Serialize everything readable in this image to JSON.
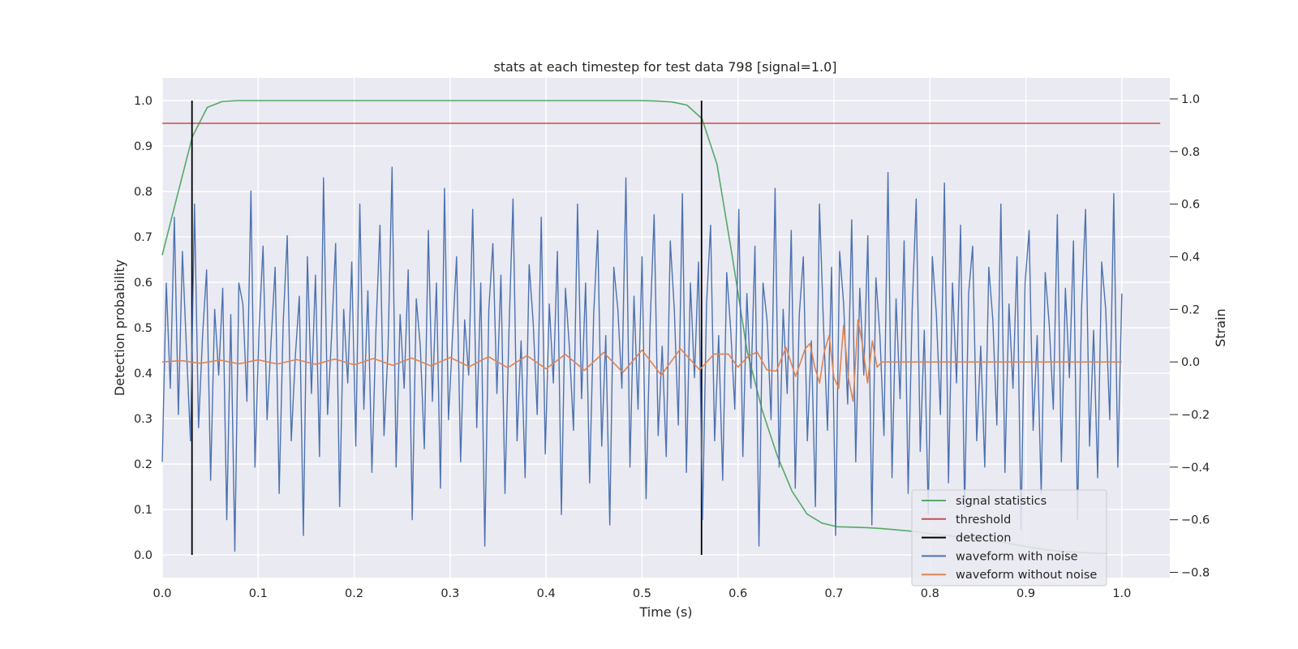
{
  "chart_data": {
    "type": "line",
    "title": "stats at each timestep for test data 798 [signal=1.0]",
    "xlabel": "Time (s)",
    "ylabel": "Detection probability",
    "y2label": "Strain",
    "xlim": [
      0.0,
      1.05
    ],
    "ylim": [
      -0.05,
      1.05
    ],
    "y2lim": [
      -0.82,
      1.08
    ],
    "xticks": [
      "0.0",
      "0.1",
      "0.2",
      "0.3",
      "0.4",
      "0.5",
      "0.6",
      "0.7",
      "0.8",
      "0.9",
      "1.0"
    ],
    "yticks": [
      "0.0",
      "0.1",
      "0.2",
      "0.3",
      "0.4",
      "0.5",
      "0.6",
      "0.7",
      "0.8",
      "0.9",
      "1.0"
    ],
    "y2ticks": [
      "−0.8",
      "−0.6",
      "−0.4",
      "−0.2",
      "0.0",
      "0.2",
      "0.4",
      "0.6",
      "0.8",
      "1.0"
    ],
    "grid": true,
    "background": "#EAEAF2",
    "legend_position": "lower-right",
    "series": [
      {
        "name": "signal statistics",
        "axis": "left",
        "color": "#55A868",
        "x": [
          0.0,
          0.0156,
          0.0313,
          0.0469,
          0.0625,
          0.0781,
          0.5,
          0.5156,
          0.5313,
          0.5469,
          0.5625,
          0.5781,
          0.5938,
          0.6094,
          0.625,
          0.6406,
          0.6563,
          0.6719,
          0.6875,
          0.7031,
          0.7188,
          0.7344,
          0.75,
          0.7656,
          0.7813,
          0.7969,
          0.8125,
          0.8281,
          0.8438,
          0.8594,
          0.875,
          0.8906,
          0.9063,
          0.9219,
          0.9375,
          0.9531,
          0.9688,
          0.9844
        ],
        "values": [
          0.66,
          0.79,
          0.92,
          0.985,
          0.998,
          1.0,
          1.0,
          0.999,
          0.997,
          0.99,
          0.96,
          0.86,
          0.66,
          0.45,
          0.32,
          0.22,
          0.14,
          0.09,
          0.07,
          0.062,
          0.061,
          0.06,
          0.058,
          0.055,
          0.052,
          0.048,
          0.044,
          0.04,
          0.036,
          0.032,
          0.028,
          0.022,
          0.016,
          0.011,
          0.008,
          0.006,
          0.004,
          0.003
        ]
      },
      {
        "name": "threshold",
        "axis": "left",
        "color": "#C44E52",
        "x": [
          0.0,
          1.04
        ],
        "values": [
          0.95,
          0.95
        ]
      },
      {
        "name": "detection",
        "axis": "left",
        "color": "#000000",
        "x": [
          0.031,
          0.562
        ],
        "values": [
          0.0,
          1.0
        ]
      },
      {
        "name": "waveform with noise",
        "axis": "right",
        "color": "#4C72B0",
        "x_range": [
          0.0,
          1.0
        ],
        "approx_amplitude": 0.25,
        "values": [
          -0.38,
          0.3,
          -0.1,
          0.55,
          -0.2,
          0.42,
          0.05,
          -0.3,
          0.6,
          -0.25,
          0.1,
          0.35,
          -0.45,
          0.2,
          -0.05,
          0.28,
          -0.6,
          0.18,
          -0.72,
          0.3,
          0.22,
          -0.15,
          0.65,
          -0.4,
          0.12,
          0.44,
          -0.22,
          0.08,
          0.36,
          -0.5,
          0.15,
          0.48,
          -0.3,
          0.02,
          0.25,
          -0.66,
          0.4,
          -0.12,
          0.33,
          -0.36,
          0.7,
          -0.2,
          0.1,
          0.45,
          -0.55,
          0.2,
          -0.08,
          0.38,
          -0.32,
          0.6,
          -0.18,
          0.27,
          -0.42,
          0.12,
          0.52,
          -0.28,
          0.05,
          0.74,
          -0.4,
          0.18,
          -0.1,
          0.35,
          -0.6,
          0.24,
          0.06,
          -0.33,
          0.5,
          -0.15,
          0.3,
          -0.48,
          0.66,
          -0.22,
          0.1,
          0.4,
          -0.38,
          0.16,
          -0.05,
          0.58,
          -0.25,
          0.3,
          -0.7,
          0.2,
          0.45,
          -0.12,
          0.33,
          -0.5,
          0.12,
          0.62,
          -0.3,
          0.08,
          -0.44,
          0.37,
          0.15,
          -0.2,
          0.55,
          -0.35,
          0.22,
          -0.08,
          0.42,
          -0.58,
          0.28,
          0.05,
          -0.26,
          0.6,
          -0.14,
          0.3,
          -0.46,
          0.18,
          0.5,
          -0.32,
          0.1,
          -0.62,
          0.36,
          0.2,
          -0.1,
          0.7,
          -0.4,
          0.25,
          -0.18,
          0.4,
          -0.52,
          0.14,
          0.56,
          -0.28,
          0.06,
          -0.36,
          0.46,
          0.2,
          -0.24,
          0.64,
          -0.42,
          0.3,
          -0.06,
          0.38,
          -0.6,
          0.22,
          0.52,
          -0.3,
          0.1,
          -0.45,
          0.34,
          0.12,
          -0.18,
          0.58,
          -0.36,
          0.26,
          -0.1,
          0.44,
          -0.7,
          0.3,
          0.16,
          -0.22,
          0.66,
          -0.4,
          0.2,
          -0.12,
          0.5,
          -0.48,
          0.18,
          0.4,
          -0.3,
          0.08,
          -0.55,
          0.6,
          0.14,
          -0.26,
          0.36,
          -0.66,
          0.42,
          0.22,
          -0.16,
          0.54,
          -0.38,
          0.28,
          -0.05,
          0.48,
          -0.62,
          0.32,
          0.1,
          -0.28,
          0.72,
          -0.44,
          0.24,
          -0.14,
          0.46,
          -0.5,
          0.2,
          0.62,
          -0.34,
          0.12,
          -0.58,
          0.4,
          0.18,
          -0.2,
          0.68,
          -0.46,
          0.3,
          -0.08,
          0.52,
          -0.56,
          0.26,
          0.44,
          -0.3,
          0.06,
          -0.4,
          0.36,
          0.16,
          -0.24,
          0.6,
          -0.42,
          0.22,
          -0.1,
          0.4,
          -0.64,
          0.3,
          0.5,
          -0.26,
          0.1,
          -0.5,
          0.34,
          0.14,
          -0.18,
          0.56,
          -0.38,
          0.28,
          -0.06,
          0.46,
          -0.6,
          0.2,
          0.58,
          -0.32,
          0.12,
          -0.44,
          0.38,
          0.2,
          -0.22,
          0.64,
          -0.4,
          0.26
        ]
      },
      {
        "name": "waveform without noise",
        "axis": "right",
        "color": "#DD8452",
        "x": [
          0.0,
          0.02,
          0.04,
          0.06,
          0.08,
          0.1,
          0.12,
          0.14,
          0.16,
          0.18,
          0.2,
          0.22,
          0.24,
          0.26,
          0.28,
          0.3,
          0.32,
          0.34,
          0.36,
          0.38,
          0.4,
          0.42,
          0.44,
          0.46,
          0.48,
          0.5,
          0.52,
          0.54,
          0.56,
          0.575,
          0.59,
          0.6,
          0.61,
          0.62,
          0.63,
          0.64,
          0.65,
          0.66,
          0.67,
          0.675,
          0.68,
          0.685,
          0.69,
          0.695,
          0.7,
          0.705,
          0.71,
          0.715,
          0.72,
          0.725,
          0.73,
          0.735,
          0.74,
          0.745,
          0.75,
          0.8,
          0.85,
          0.9,
          0.95,
          1.0
        ],
        "values": [
          0.0,
          0.005,
          -0.005,
          0.007,
          -0.007,
          0.008,
          -0.008,
          0.009,
          -0.009,
          0.011,
          -0.011,
          0.013,
          -0.013,
          0.015,
          -0.015,
          0.017,
          -0.018,
          0.02,
          -0.022,
          0.024,
          -0.026,
          0.029,
          -0.032,
          0.036,
          -0.04,
          0.045,
          -0.05,
          0.05,
          -0.03,
          0.03,
          0.03,
          -0.02,
          0.02,
          0.038,
          -0.03,
          -0.035,
          0.055,
          -0.055,
          0.05,
          0.07,
          -0.02,
          -0.08,
          0.04,
          0.1,
          -0.06,
          -0.1,
          0.14,
          -0.06,
          -0.15,
          0.16,
          0.06,
          -0.08,
          0.08,
          -0.02,
          0.0,
          0.0,
          0.0,
          0.0,
          0.0,
          0.0
        ]
      }
    ]
  }
}
